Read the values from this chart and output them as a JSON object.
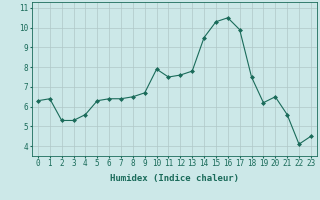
{
  "x": [
    0,
    1,
    2,
    3,
    4,
    5,
    6,
    7,
    8,
    9,
    10,
    11,
    12,
    13,
    14,
    15,
    16,
    17,
    18,
    19,
    20,
    21,
    22,
    23
  ],
  "y": [
    6.3,
    6.4,
    5.3,
    5.3,
    5.6,
    6.3,
    6.4,
    6.4,
    6.5,
    6.7,
    7.9,
    7.5,
    7.6,
    7.8,
    9.5,
    10.3,
    10.5,
    9.9,
    7.5,
    6.2,
    6.5,
    5.6,
    4.1,
    4.5
  ],
  "line_color": "#1a6b5a",
  "marker": "D",
  "marker_size": 2,
  "bg_color": "#cce8e8",
  "grid_color": "#b0c8c8",
  "xlabel": "Humidex (Indice chaleur)",
  "xlim": [
    -0.5,
    23.5
  ],
  "ylim": [
    3.5,
    11.3
  ],
  "yticks": [
    4,
    5,
    6,
    7,
    8,
    9,
    10,
    11
  ],
  "xticks": [
    0,
    1,
    2,
    3,
    4,
    5,
    6,
    7,
    8,
    9,
    10,
    11,
    12,
    13,
    14,
    15,
    16,
    17,
    18,
    19,
    20,
    21,
    22,
    23
  ],
  "label_fontsize": 6.5,
  "tick_fontsize": 5.5
}
